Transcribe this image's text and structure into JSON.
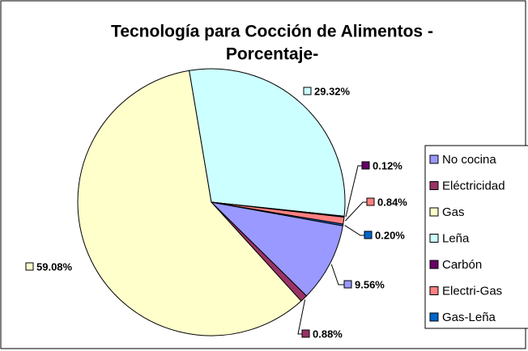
{
  "chart_data": {
    "type": "pie",
    "title": [
      "Tecnología para Cocción de Alimentos -",
      "Porcentaje-"
    ],
    "categories": [
      "No cocina",
      "Eléctricidad",
      "Gas",
      "Leña",
      "Carbón",
      "Electri-Gas",
      "Gas-Leña"
    ],
    "values": [
      9.56,
      0.88,
      59.08,
      29.32,
      0.12,
      0.84,
      0.2
    ],
    "value_labels": [
      "9.56%",
      "0.88%",
      "59.08%",
      "29.32%",
      "0.12%",
      "0.84%",
      "0.20%"
    ],
    "colors": [
      "#9999ff",
      "#993366",
      "#ffffcc",
      "#ccffff",
      "#660066",
      "#ff8080",
      "#0066cc"
    ],
    "legend": "right"
  }
}
